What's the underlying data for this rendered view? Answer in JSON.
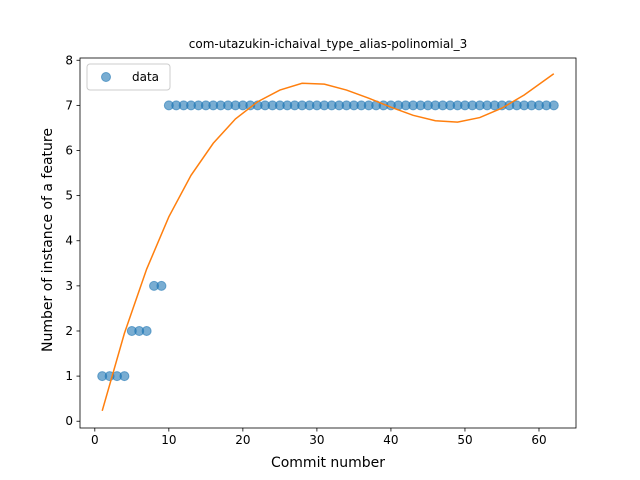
{
  "chart_data": {
    "type": "scatter",
    "title": "com-utazukin-ichaival_type_alias-polinomial_3",
    "xlabel": "Commit number",
    "ylabel": "Number of instance of a feature",
    "xlim": [
      -2,
      65
    ],
    "ylim": [
      -0.15,
      8.05
    ],
    "xticks": [
      0,
      10,
      20,
      30,
      40,
      50,
      60
    ],
    "yticks": [
      0,
      1,
      2,
      3,
      4,
      5,
      6,
      7,
      8
    ],
    "grid": false,
    "legend_position": "top-left",
    "series": [
      {
        "name": "data",
        "kind": "scatter",
        "color": "#1f77b4",
        "x": [
          1,
          2,
          3,
          4,
          5,
          6,
          7,
          8,
          9,
          10,
          11,
          12,
          13,
          14,
          15,
          16,
          17,
          18,
          19,
          20,
          21,
          22,
          23,
          24,
          25,
          26,
          27,
          28,
          29,
          30,
          31,
          32,
          33,
          34,
          35,
          36,
          37,
          38,
          39,
          40,
          41,
          42,
          43,
          44,
          45,
          46,
          47,
          48,
          49,
          50,
          51,
          52,
          53,
          54,
          55,
          56,
          57,
          58,
          59,
          60,
          61,
          62
        ],
        "y": [
          1,
          1,
          1,
          1,
          2,
          2,
          2,
          3,
          3,
          7,
          7,
          7,
          7,
          7,
          7,
          7,
          7,
          7,
          7,
          7,
          7,
          7,
          7,
          7,
          7,
          7,
          7,
          7,
          7,
          7,
          7,
          7,
          7,
          7,
          7,
          7,
          7,
          7,
          7,
          7,
          7,
          7,
          7,
          7,
          7,
          7,
          7,
          7,
          7,
          7,
          7,
          7,
          7,
          7,
          7,
          7,
          7,
          7,
          7,
          7,
          7,
          7
        ]
      },
      {
        "kind": "line",
        "color": "#ff7f0e",
        "x": [
          1,
          4,
          7,
          10,
          13,
          16,
          19,
          22,
          25,
          28,
          31,
          34,
          37,
          40,
          43,
          46,
          49,
          52,
          55,
          58,
          62
        ],
        "y": [
          0.23,
          1.95,
          3.37,
          4.53,
          5.45,
          6.16,
          6.7,
          7.08,
          7.34,
          7.49,
          7.47,
          7.34,
          7.16,
          6.96,
          6.78,
          6.66,
          6.63,
          6.73,
          6.94,
          7.23,
          7.7
        ]
      }
    ]
  }
}
